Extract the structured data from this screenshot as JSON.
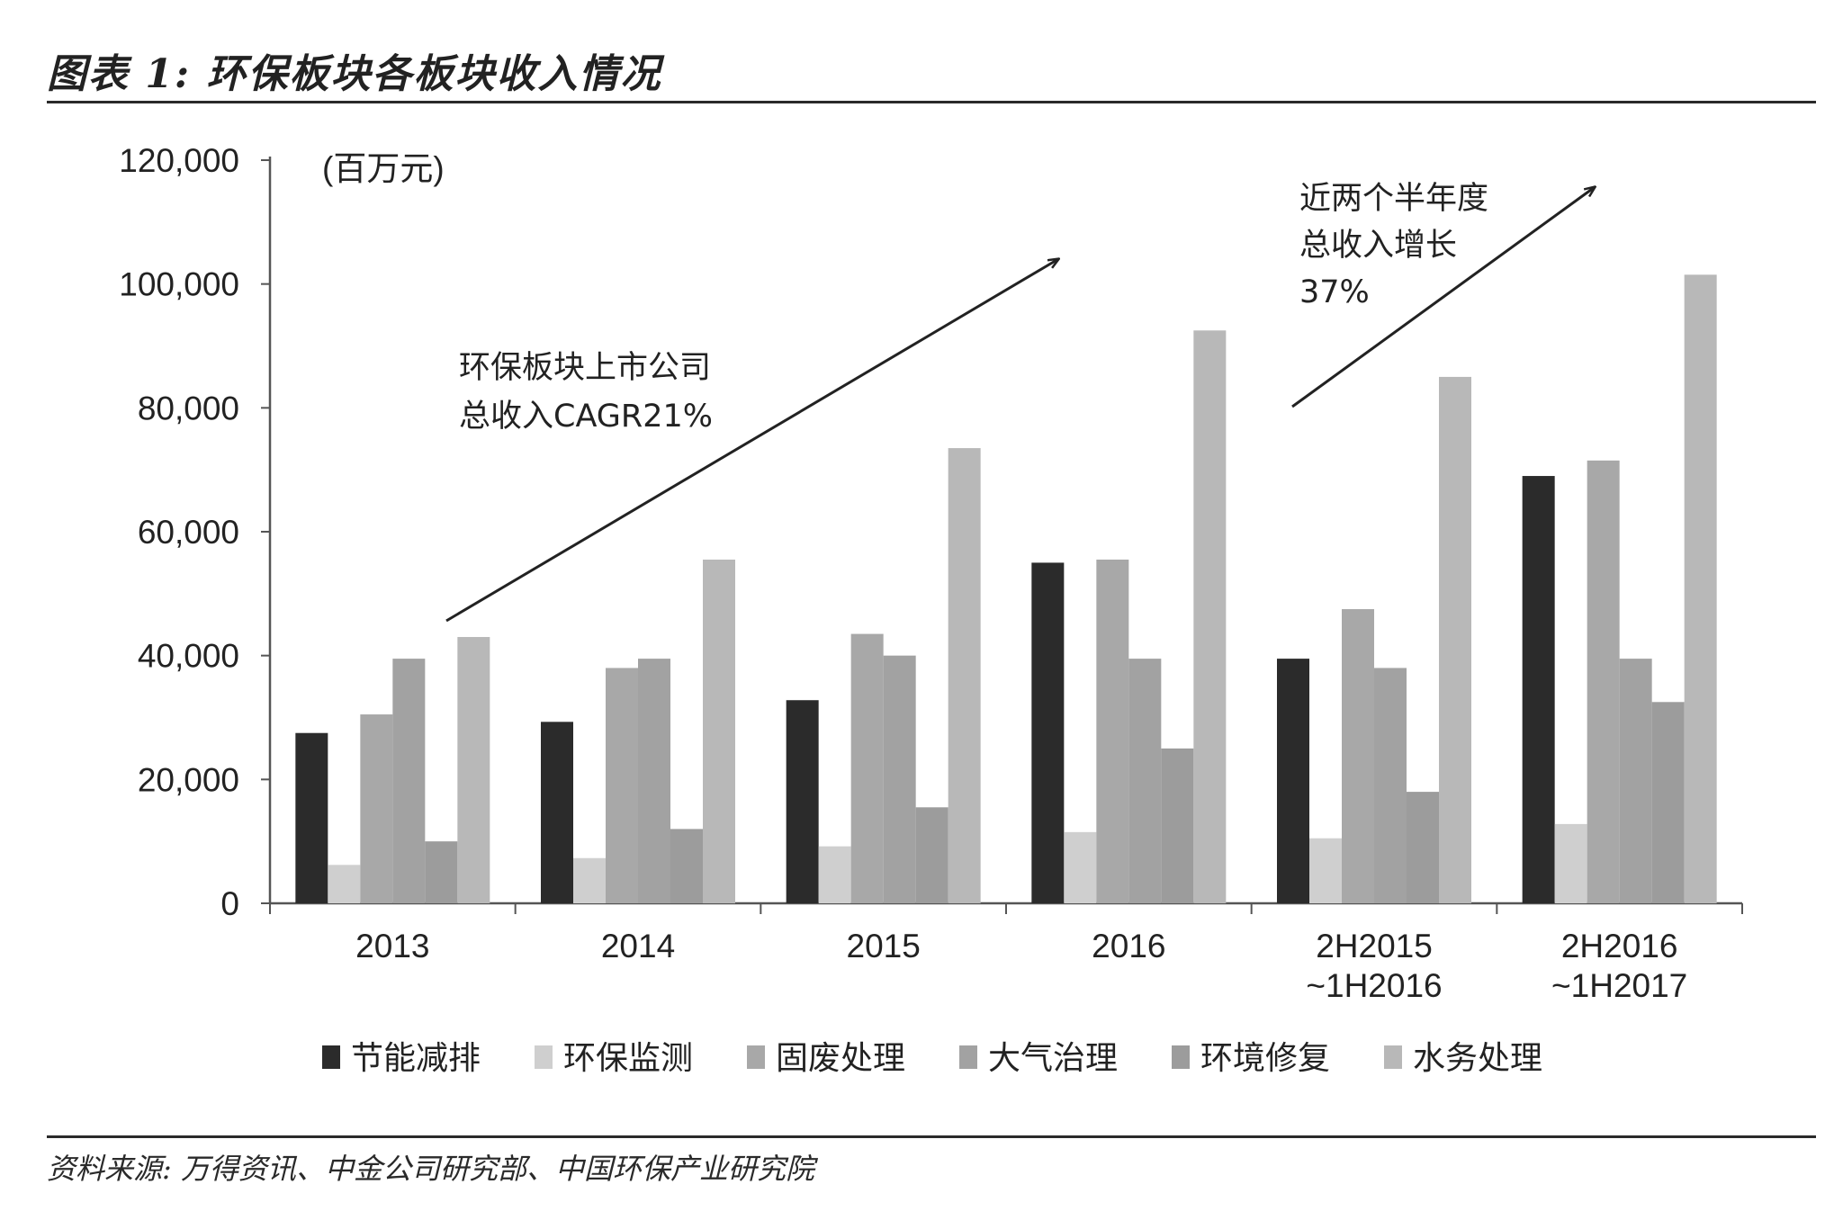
{
  "title": "图表 1:  环保板块各板块收入情况",
  "source": "资料来源:  万得资讯、中金公司研究部、中国环保产业研究院",
  "chart_data": {
    "type": "bar",
    "unit_label": "(百万元)",
    "categories": [
      [
        "2013"
      ],
      [
        "2014"
      ],
      [
        "2015"
      ],
      [
        "2016"
      ],
      [
        "2H2015",
        "~1H2016"
      ],
      [
        "2H2016",
        "~1H2017"
      ]
    ],
    "series": [
      {
        "name": "节能减排",
        "color": "#2b2b2b",
        "values": [
          27500,
          29300,
          32800,
          55000,
          39500,
          69000
        ]
      },
      {
        "name": "环保监测",
        "color": "#cfcfcf",
        "values": [
          6200,
          7300,
          9200,
          11500,
          10500,
          12800
        ]
      },
      {
        "name": "固废处理",
        "color": "#a8a8a8",
        "values": [
          30500,
          38000,
          43500,
          55500,
          47500,
          71500
        ]
      },
      {
        "name": "大气治理",
        "color": "#a2a2a2",
        "values": [
          39500,
          39500,
          40000,
          39500,
          38000,
          39500
        ]
      },
      {
        "name": "环境修复",
        "color": "#9c9c9c",
        "values": [
          10000,
          12000,
          15500,
          25000,
          18000,
          32500
        ]
      },
      {
        "name": "水务处理",
        "color": "#b8b8b8",
        "values": [
          43000,
          55500,
          73500,
          92500,
          85000,
          101500
        ]
      }
    ],
    "ylim": [
      0,
      120000
    ],
    "yticks": [
      0,
      20000,
      40000,
      60000,
      80000,
      100000,
      120000
    ],
    "ytick_labels": [
      "0",
      "20,000",
      "40,000",
      "60,000",
      "80,000",
      "100,000",
      "120,000"
    ],
    "legend_position": "bottom",
    "grid": false,
    "annotations": [
      {
        "lines": [
          "环保板块上市公司",
          "总收入CAGR21%"
        ]
      },
      {
        "lines": [
          "近两个半年度",
          "总收入增长",
          "37%"
        ]
      }
    ]
  }
}
